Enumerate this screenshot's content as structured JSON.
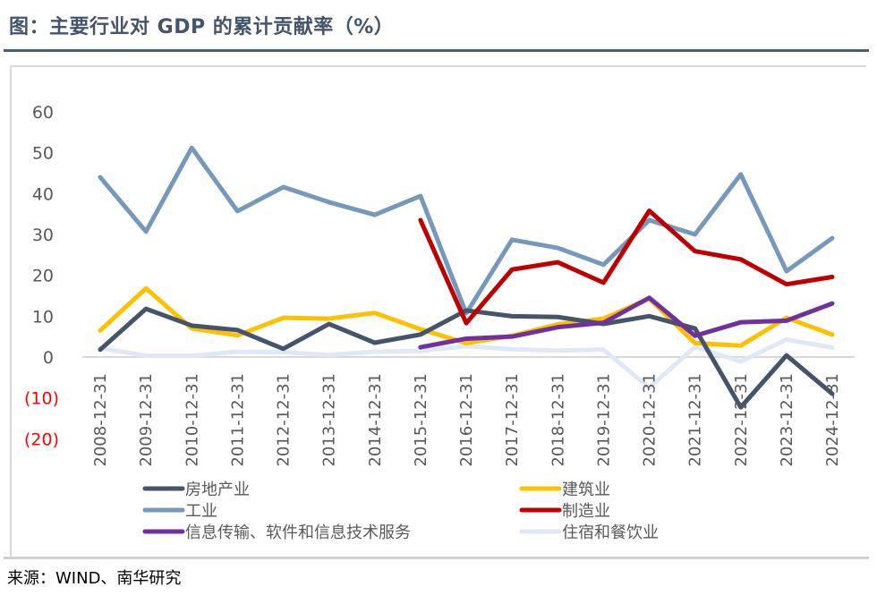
{
  "title": "图：主要行业对 GDP 的累计贡献率（%）",
  "source": "来源：WIND、南华研究",
  "chart_data": {
    "type": "line",
    "title": "主要行业对 GDP 的累计贡献率（%）",
    "xlabel": "",
    "ylabel": "",
    "ylim": [
      -20,
      60
    ],
    "yticks": [
      60,
      50,
      40,
      30,
      20,
      10,
      0,
      -10,
      -20
    ],
    "ytick_labels": [
      "60",
      "50",
      "40",
      "30",
      "20",
      "10",
      "0",
      "(10)",
      "(20)"
    ],
    "negative_tick_color": "#ff0000",
    "positive_tick_color": "#595959",
    "grid": false,
    "legend_position": "bottom",
    "x": [
      "2008-12-31",
      "2009-12-31",
      "2010-12-31",
      "2011-12-31",
      "2012-12-31",
      "2013-12-31",
      "2014-12-31",
      "2015-12-31",
      "2016-12-31",
      "2017-12-31",
      "2018-12-31",
      "2019-12-31",
      "2020-12-31",
      "2021-12-31",
      "2022-12-31",
      "2023-12-31",
      "2024-12-31"
    ],
    "series": [
      {
        "name": "房地产业",
        "color": "#44546a",
        "values": [
          1.8,
          11.8,
          7.7,
          6.6,
          2.0,
          8.1,
          3.5,
          5.5,
          11.4,
          10.0,
          9.8,
          8.1,
          10.0,
          7.0,
          -12.3,
          0.4,
          -9.0
        ]
      },
      {
        "name": "建筑业",
        "color": "#ffc000",
        "values": [
          6.5,
          16.8,
          7.0,
          5.3,
          9.6,
          9.4,
          10.8,
          6.8,
          3.4,
          5.2,
          8.0,
          9.4,
          14.3,
          3.4,
          2.8,
          9.6,
          5.5
        ]
      },
      {
        "name": "工业",
        "color": "#7598bb",
        "values": [
          44.0,
          30.7,
          51.2,
          35.7,
          41.6,
          37.9,
          34.8,
          39.4,
          10.7,
          28.7,
          26.7,
          22.6,
          33.5,
          30.0,
          44.7,
          21.0,
          29.1
        ]
      },
      {
        "name": "制造业",
        "color": "#c00000",
        "values": [
          null,
          null,
          null,
          null,
          null,
          null,
          null,
          33.5,
          8.3,
          21.4,
          23.2,
          18.2,
          35.8,
          25.9,
          23.9,
          17.8,
          19.6
        ]
      },
      {
        "name": "信息传输、软件和信息技术服务",
        "color": "#7030a0",
        "values": [
          null,
          null,
          null,
          null,
          null,
          null,
          null,
          2.4,
          4.5,
          5.0,
          7.3,
          8.4,
          14.5,
          5.2,
          8.5,
          8.9,
          13.1
        ]
      },
      {
        "name": "住宿和餐饮业",
        "color": "#dfe9f5",
        "values": [
          2.2,
          0.3,
          0.3,
          1.3,
          1.2,
          0.5,
          1.3,
          1.5,
          2.7,
          1.9,
          1.6,
          1.8,
          -7.5,
          2.5,
          -1.1,
          4.3,
          2.3
        ]
      }
    ]
  }
}
